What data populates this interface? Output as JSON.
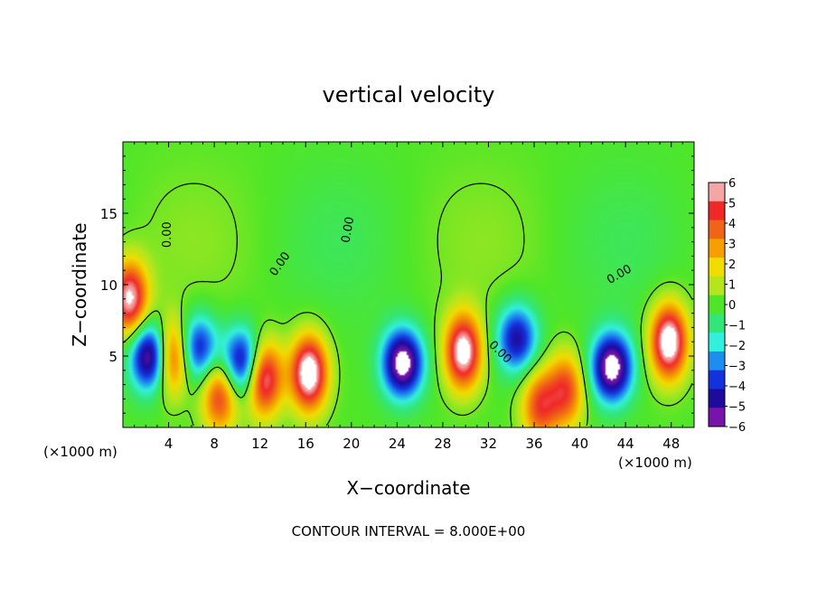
{
  "chart_data": {
    "type": "heatmap",
    "title": "vertical velocity",
    "xlabel": "X−coordinate",
    "ylabel": "Z−coordinate",
    "x_unit_left": "(×1000 m)",
    "x_unit_right": "(×1000 m)",
    "xlim": [
      0,
      50
    ],
    "ylim": [
      0,
      20
    ],
    "x_ticks": [
      {
        "value": 4,
        "label": "4"
      },
      {
        "value": 8,
        "label": "8"
      },
      {
        "value": 12,
        "label": "12"
      },
      {
        "value": 16,
        "label": "16"
      },
      {
        "value": 20,
        "label": "20"
      },
      {
        "value": 24,
        "label": "24"
      },
      {
        "value": 28,
        "label": "28"
      },
      {
        "value": 32,
        "label": "32"
      },
      {
        "value": 36,
        "label": "36"
      },
      {
        "value": 40,
        "label": "40"
      },
      {
        "value": 44,
        "label": "44"
      },
      {
        "value": 48,
        "label": "48"
      }
    ],
    "y_ticks": [
      {
        "value": 5,
        "label": "5"
      },
      {
        "value": 10,
        "label": "10"
      },
      {
        "value": 15,
        "label": "15"
      }
    ],
    "colorbar": {
      "min": -6,
      "max": 6,
      "labels": [
        "6",
        "5",
        "4",
        "3",
        "2",
        "1",
        "0",
        "−1",
        "−2",
        "−3",
        "−4",
        "−5",
        "−6"
      ],
      "colors": [
        "#f4a6a6",
        "#f02828",
        "#f06418",
        "#f5a000",
        "#f0dc00",
        "#b4e61e",
        "#50e628",
        "#32e678",
        "#32f0dc",
        "#1e8cf0",
        "#1432dc",
        "#1e0a9b",
        "#7814aa"
      ]
    },
    "contour_label": "0.00",
    "contour_interval_text": "CONTOUR INTERVAL = 8.000E+00",
    "features": [
      {
        "kind": "updraft",
        "x": 0.6,
        "z": 9.0,
        "amp": 6.5
      },
      {
        "kind": "downdraft",
        "x": 2.5,
        "z": 5.0,
        "amp": -7.0
      },
      {
        "kind": "updraft",
        "x": 4.3,
        "z": 5.0,
        "amp": 6.5
      },
      {
        "kind": "downdraft",
        "x": 6.5,
        "z": 5.5,
        "amp": -5.0
      },
      {
        "kind": "updraft",
        "x": 8.5,
        "z": 2.3,
        "amp": 5.0
      },
      {
        "kind": "downdraft",
        "x": 10.5,
        "z": 4.5,
        "amp": -6.0
      },
      {
        "kind": "updraft",
        "x": 12.3,
        "z": 3.5,
        "amp": 6.8
      },
      {
        "kind": "updraft",
        "x": 16.3,
        "z": 3.8,
        "amp": 7.5
      },
      {
        "kind": "downdraft",
        "x": 24.5,
        "z": 4.5,
        "amp": -7.0
      },
      {
        "kind": "updraft",
        "x": 29.8,
        "z": 5.3,
        "amp": 7.0
      },
      {
        "kind": "downdraft",
        "x": 34.5,
        "z": 6.2,
        "amp": -5.0
      },
      {
        "kind": "updraft",
        "x": 36.5,
        "z": 1.5,
        "amp": 4.5
      },
      {
        "kind": "updraft",
        "x": 38.8,
        "z": 2.6,
        "amp": 4.5
      },
      {
        "kind": "downdraft",
        "x": 42.8,
        "z": 4.2,
        "amp": -7.0
      },
      {
        "kind": "updraft",
        "x": 47.8,
        "z": 6.0,
        "amp": 7.5
      }
    ]
  }
}
